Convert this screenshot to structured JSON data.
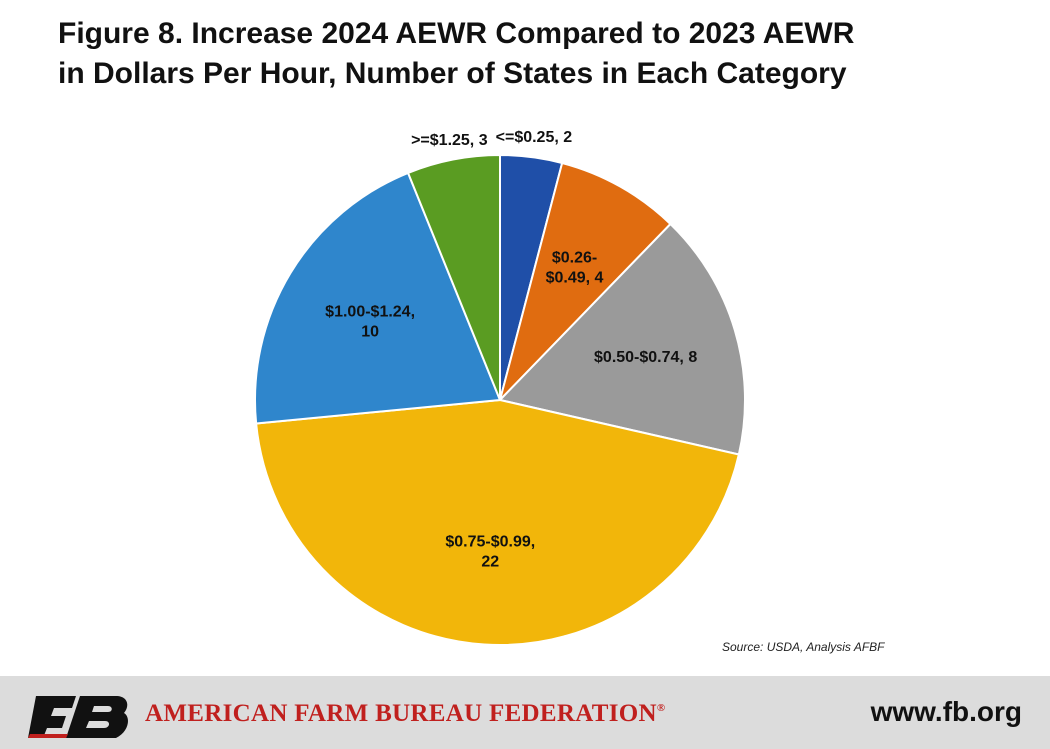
{
  "title_line1": "Figure 8. Increase 2024 AEWR Compared to 2023 AEWR",
  "title_line2": "in Dollars Per Hour, Number of States in Each Category",
  "source": "Source: USDA, Analysis AFBF",
  "footer": {
    "org_name": "AMERICAN FARM BUREAU FEDERATION",
    "registered_mark": "®",
    "logo_text": "FB",
    "url": "www.fb.org"
  },
  "chart_data": {
    "type": "pie",
    "title": "Figure 8. Increase 2024 AEWR Compared to 2023 AEWR in Dollars Per Hour, Number of States in Each Category",
    "start_angle_deg": 0,
    "direction": "clockwise",
    "slices": [
      {
        "category": "<=$0.25",
        "value": 2,
        "color": "#1f4fa8",
        "label_lines": [
          "<=$0.25, 2"
        ],
        "label_position": "outside"
      },
      {
        "category": "$0.26-$0.49",
        "value": 4,
        "color": "#e06c10",
        "label_lines": [
          "$0.26-",
          "$0.49, 4"
        ],
        "label_position": "inside"
      },
      {
        "category": "$0.50-$0.74",
        "value": 8,
        "color": "#9a9a9a",
        "label_lines": [
          "$0.50-$0.74, 8"
        ],
        "label_position": "inside"
      },
      {
        "category": "$0.75-$0.99",
        "value": 22,
        "color": "#f2b60a",
        "label_lines": [
          "$0.75-$0.99,",
          "22"
        ],
        "label_position": "inside"
      },
      {
        "category": "$1.00-$1.24",
        "value": 10,
        "color": "#2f86cc",
        "label_lines": [
          "$1.00-$1.24,",
          "10"
        ],
        "label_position": "inside"
      },
      {
        "category": ">=$1.25",
        "value": 3,
        "color": "#5a9c22",
        "label_lines": [
          ">=$1.25, 3"
        ],
        "label_position": "outside"
      }
    ]
  }
}
